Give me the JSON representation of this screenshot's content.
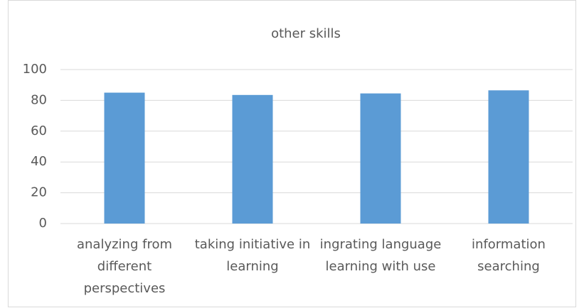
{
  "chart_data": {
    "type": "bar",
    "title": "other skills",
    "categories": [
      "analyzing from different perspectives",
      "taking initiative in learning",
      "ingrating language learning with use",
      "information searching"
    ],
    "values": [
      85,
      83.5,
      84.5,
      86.5
    ],
    "color": "#5b9bd5",
    "ylim": [
      0,
      100
    ],
    "yticks": [
      0,
      20,
      40,
      60,
      80,
      100
    ],
    "grid": true
  }
}
